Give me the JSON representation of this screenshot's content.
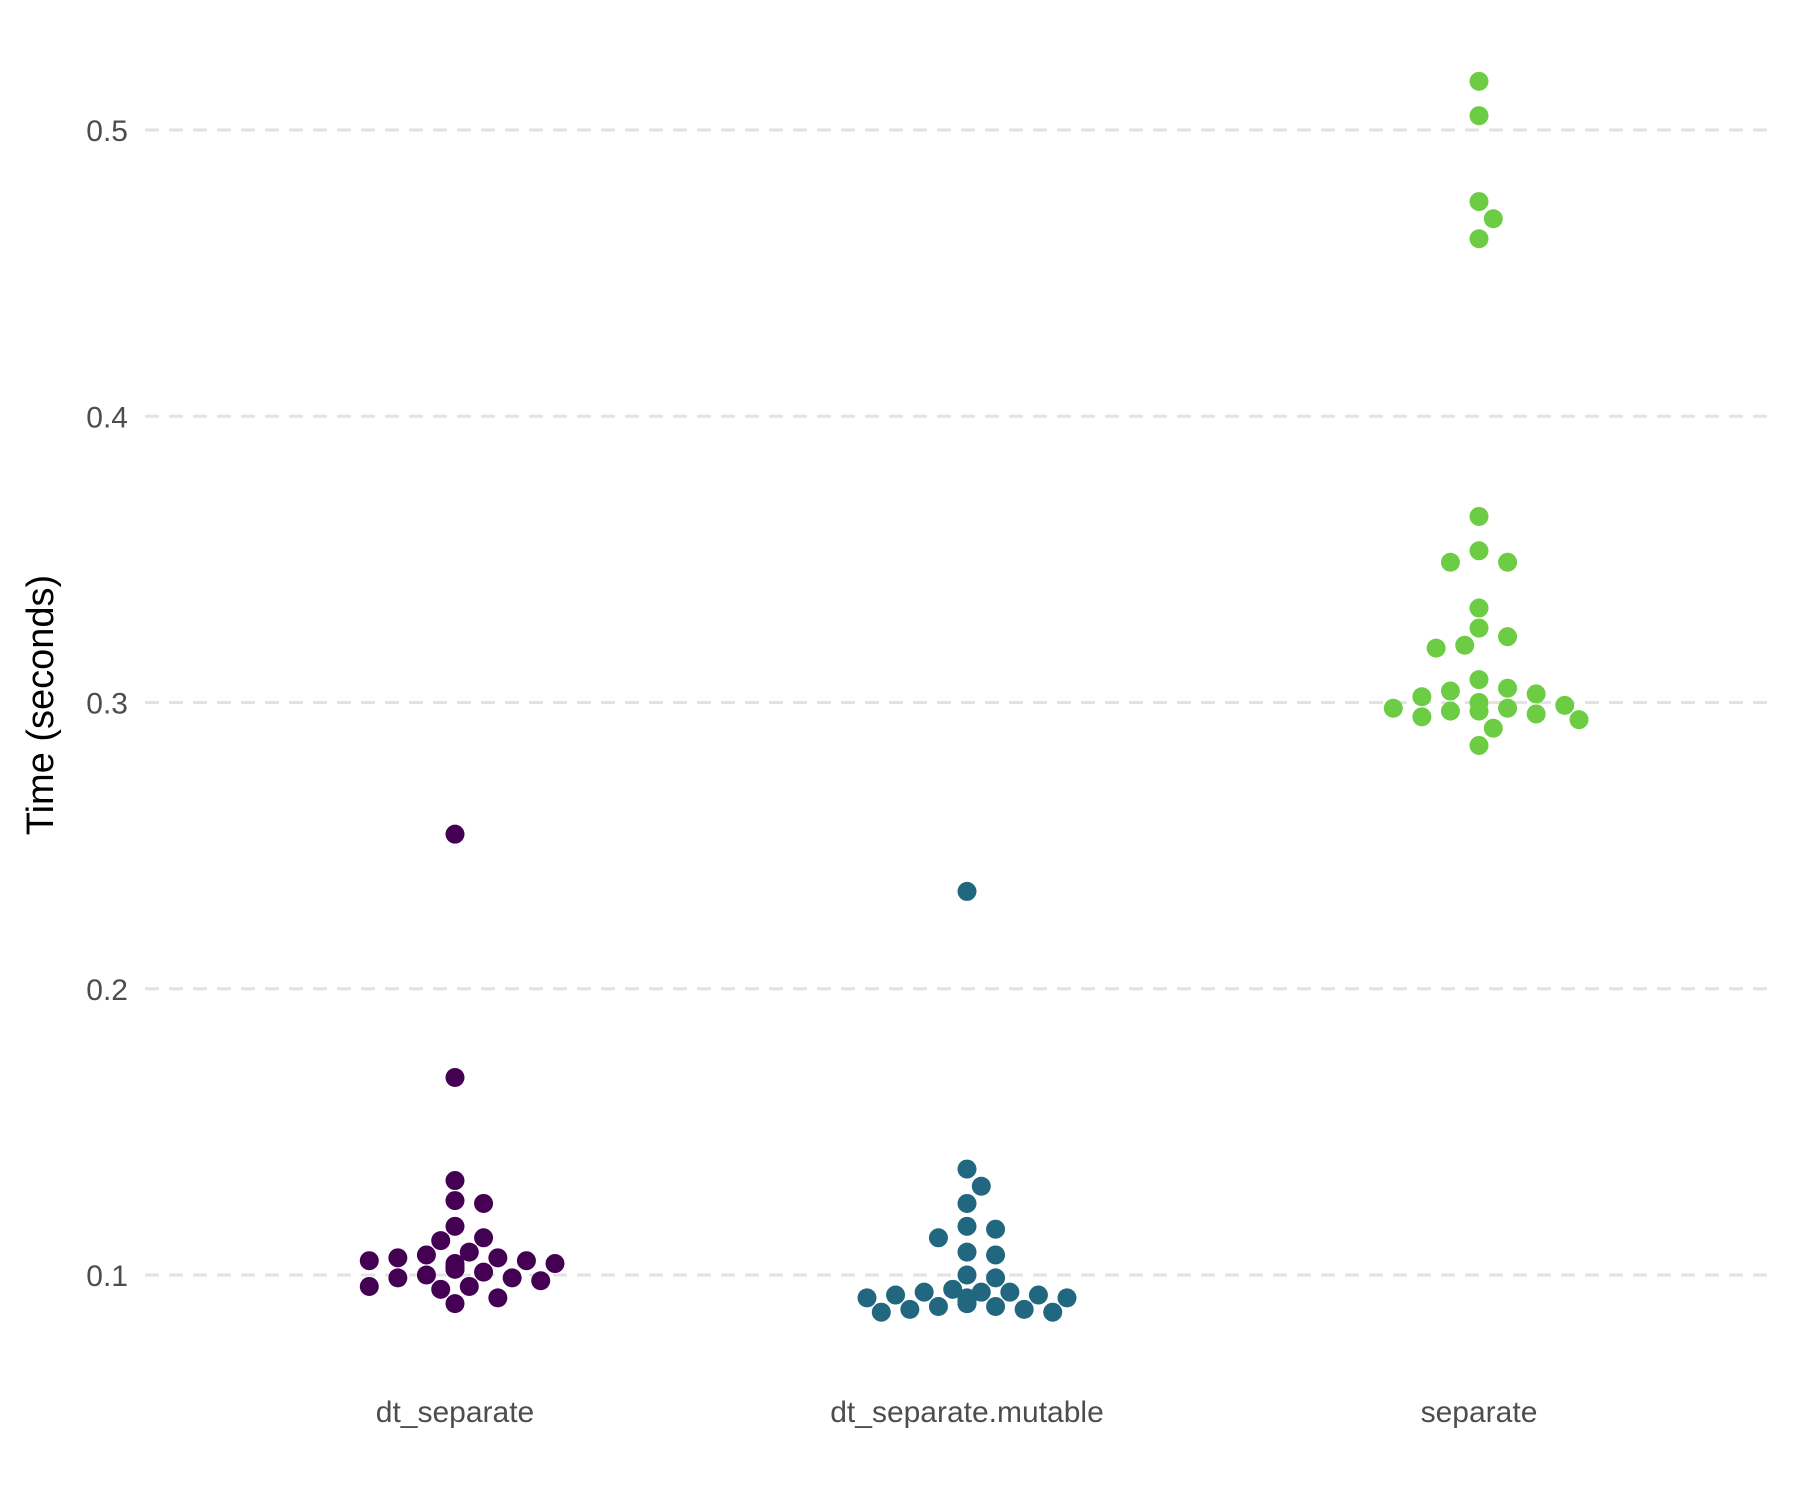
{
  "chart_data": {
    "type": "scatter",
    "subtype": "beeswarm",
    "title": "",
    "xlabel": "",
    "ylabel": "Time (seconds)",
    "ylim": [
      0.06,
      0.53
    ],
    "yticks": [
      0.1,
      0.2,
      0.3,
      0.4,
      0.5
    ],
    "ytick_labels": [
      "0.1",
      "0.2",
      "0.3",
      "0.4",
      "0.5"
    ],
    "grid": "horizontal dashed",
    "legend": "none",
    "categories": [
      "dt_separate",
      "dt_separate.mutable",
      "separate"
    ],
    "series": [
      {
        "category": "dt_separate",
        "color": "#440154",
        "values": [
          0.254,
          0.169,
          0.133,
          0.126,
          0.125,
          0.117,
          0.113,
          0.112,
          0.108,
          0.107,
          0.106,
          0.106,
          0.105,
          0.105,
          0.104,
          0.104,
          0.103,
          0.103,
          0.102,
          0.102,
          0.101,
          0.1,
          0.099,
          0.099,
          0.098,
          0.096,
          0.096,
          0.095,
          0.092,
          0.09
        ]
      },
      {
        "category": "dt_separate.mutable",
        "color": "#21677f",
        "values": [
          0.234,
          0.137,
          0.131,
          0.125,
          0.117,
          0.116,
          0.113,
          0.108,
          0.107,
          0.1,
          0.099,
          0.095,
          0.094,
          0.094,
          0.094,
          0.093,
          0.093,
          0.092,
          0.092,
          0.092,
          0.091,
          0.091,
          0.09,
          0.09,
          0.089,
          0.089,
          0.088,
          0.088,
          0.087,
          0.087
        ]
      },
      {
        "category": "separate",
        "color": "#6ccd45",
        "values": [
          0.517,
          0.505,
          0.475,
          0.469,
          0.462,
          0.365,
          0.353,
          0.349,
          0.349,
          0.333,
          0.326,
          0.323,
          0.32,
          0.319,
          0.308,
          0.305,
          0.304,
          0.303,
          0.302,
          0.3,
          0.299,
          0.298,
          0.298,
          0.297,
          0.297,
          0.296,
          0.295,
          0.294,
          0.291,
          0.285
        ]
      }
    ]
  }
}
